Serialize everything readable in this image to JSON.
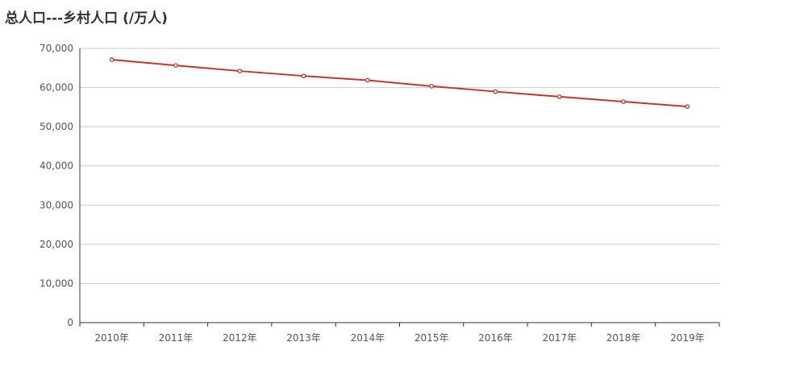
{
  "title": "总人口---乡村人口 (/万人)",
  "colors": {
    "line": "#c23531",
    "grid": "#cccccc",
    "axis": "#333333",
    "text": "#555555"
  },
  "chart_data": {
    "type": "line",
    "title": "总人口---乡村人口 (/万人)",
    "xlabel": "",
    "ylabel": "",
    "categories": [
      "2010年",
      "2011年",
      "2012年",
      "2013年",
      "2014年",
      "2015年",
      "2016年",
      "2017年",
      "2018年",
      "2019年"
    ],
    "series": [
      {
        "values": [
          67113,
          65656,
          64222,
          62961,
          61866,
          60346,
          58973,
          57661,
          56401,
          55162
        ]
      }
    ],
    "ylim": [
      0,
      70000
    ],
    "yticks": [
      "0",
      "10,000",
      "20,000",
      "30,000",
      "40,000",
      "50,000",
      "60,000",
      "70,000"
    ],
    "grid": true,
    "legend": "none"
  }
}
